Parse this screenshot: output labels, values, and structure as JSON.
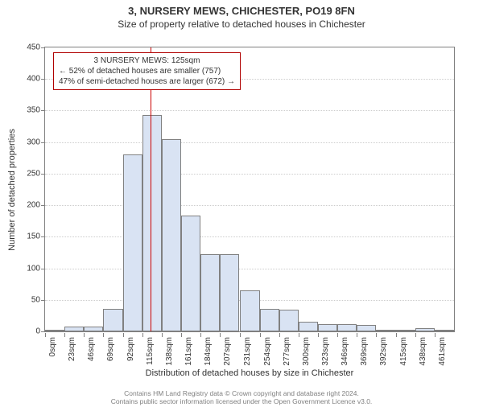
{
  "title_main": "3, NURSERY MEWS, CHICHESTER, PO19 8FN",
  "title_sub": "Size of property relative to detached houses in Chichester",
  "y_axis_label": "Number of detached properties",
  "x_axis_label": "Distribution of detached houses by size in Chichester",
  "footer_line1": "Contains HM Land Registry data © Crown copyright and database right 2024.",
  "footer_line2": "Contains public sector information licensed under the Open Government Licence v3.0.",
  "chart": {
    "type": "histogram",
    "y_min": 0,
    "y_max": 450,
    "y_tick_step": 50,
    "x_tick_step": 23,
    "x_min": 0,
    "x_max": 484,
    "x_unit": "sqm",
    "bar_fill": "#d9e3f3",
    "bar_stroke": "#808080",
    "grid_color": "#cccccc",
    "axis_color": "#808080",
    "background": "#ffffff",
    "bars": [
      {
        "bin_start": 0,
        "value": 1
      },
      {
        "bin_start": 23,
        "value": 8
      },
      {
        "bin_start": 46,
        "value": 8
      },
      {
        "bin_start": 69,
        "value": 36
      },
      {
        "bin_start": 92,
        "value": 280
      },
      {
        "bin_start": 115,
        "value": 343
      },
      {
        "bin_start": 138,
        "value": 305
      },
      {
        "bin_start": 161,
        "value": 183
      },
      {
        "bin_start": 184,
        "value": 122
      },
      {
        "bin_start": 207,
        "value": 122
      },
      {
        "bin_start": 231,
        "value": 65
      },
      {
        "bin_start": 254,
        "value": 36
      },
      {
        "bin_start": 277,
        "value": 35
      },
      {
        "bin_start": 300,
        "value": 15
      },
      {
        "bin_start": 323,
        "value": 12
      },
      {
        "bin_start": 346,
        "value": 12
      },
      {
        "bin_start": 369,
        "value": 10
      },
      {
        "bin_start": 392,
        "value": 2
      },
      {
        "bin_start": 415,
        "value": 2
      },
      {
        "bin_start": 438,
        "value": 5
      },
      {
        "bin_start": 461,
        "value": 2
      }
    ],
    "marker": {
      "value_sqm": 125,
      "color": "#cc0000"
    },
    "annotation": {
      "line1": "3 NURSERY MEWS: 125sqm",
      "line2": "← 52% of detached houses are smaller (757)",
      "line3": "47% of semi-detached houses are larger (672) →",
      "border_color": "#b00000",
      "text_color": "#333333",
      "fontsize": 10
    }
  }
}
